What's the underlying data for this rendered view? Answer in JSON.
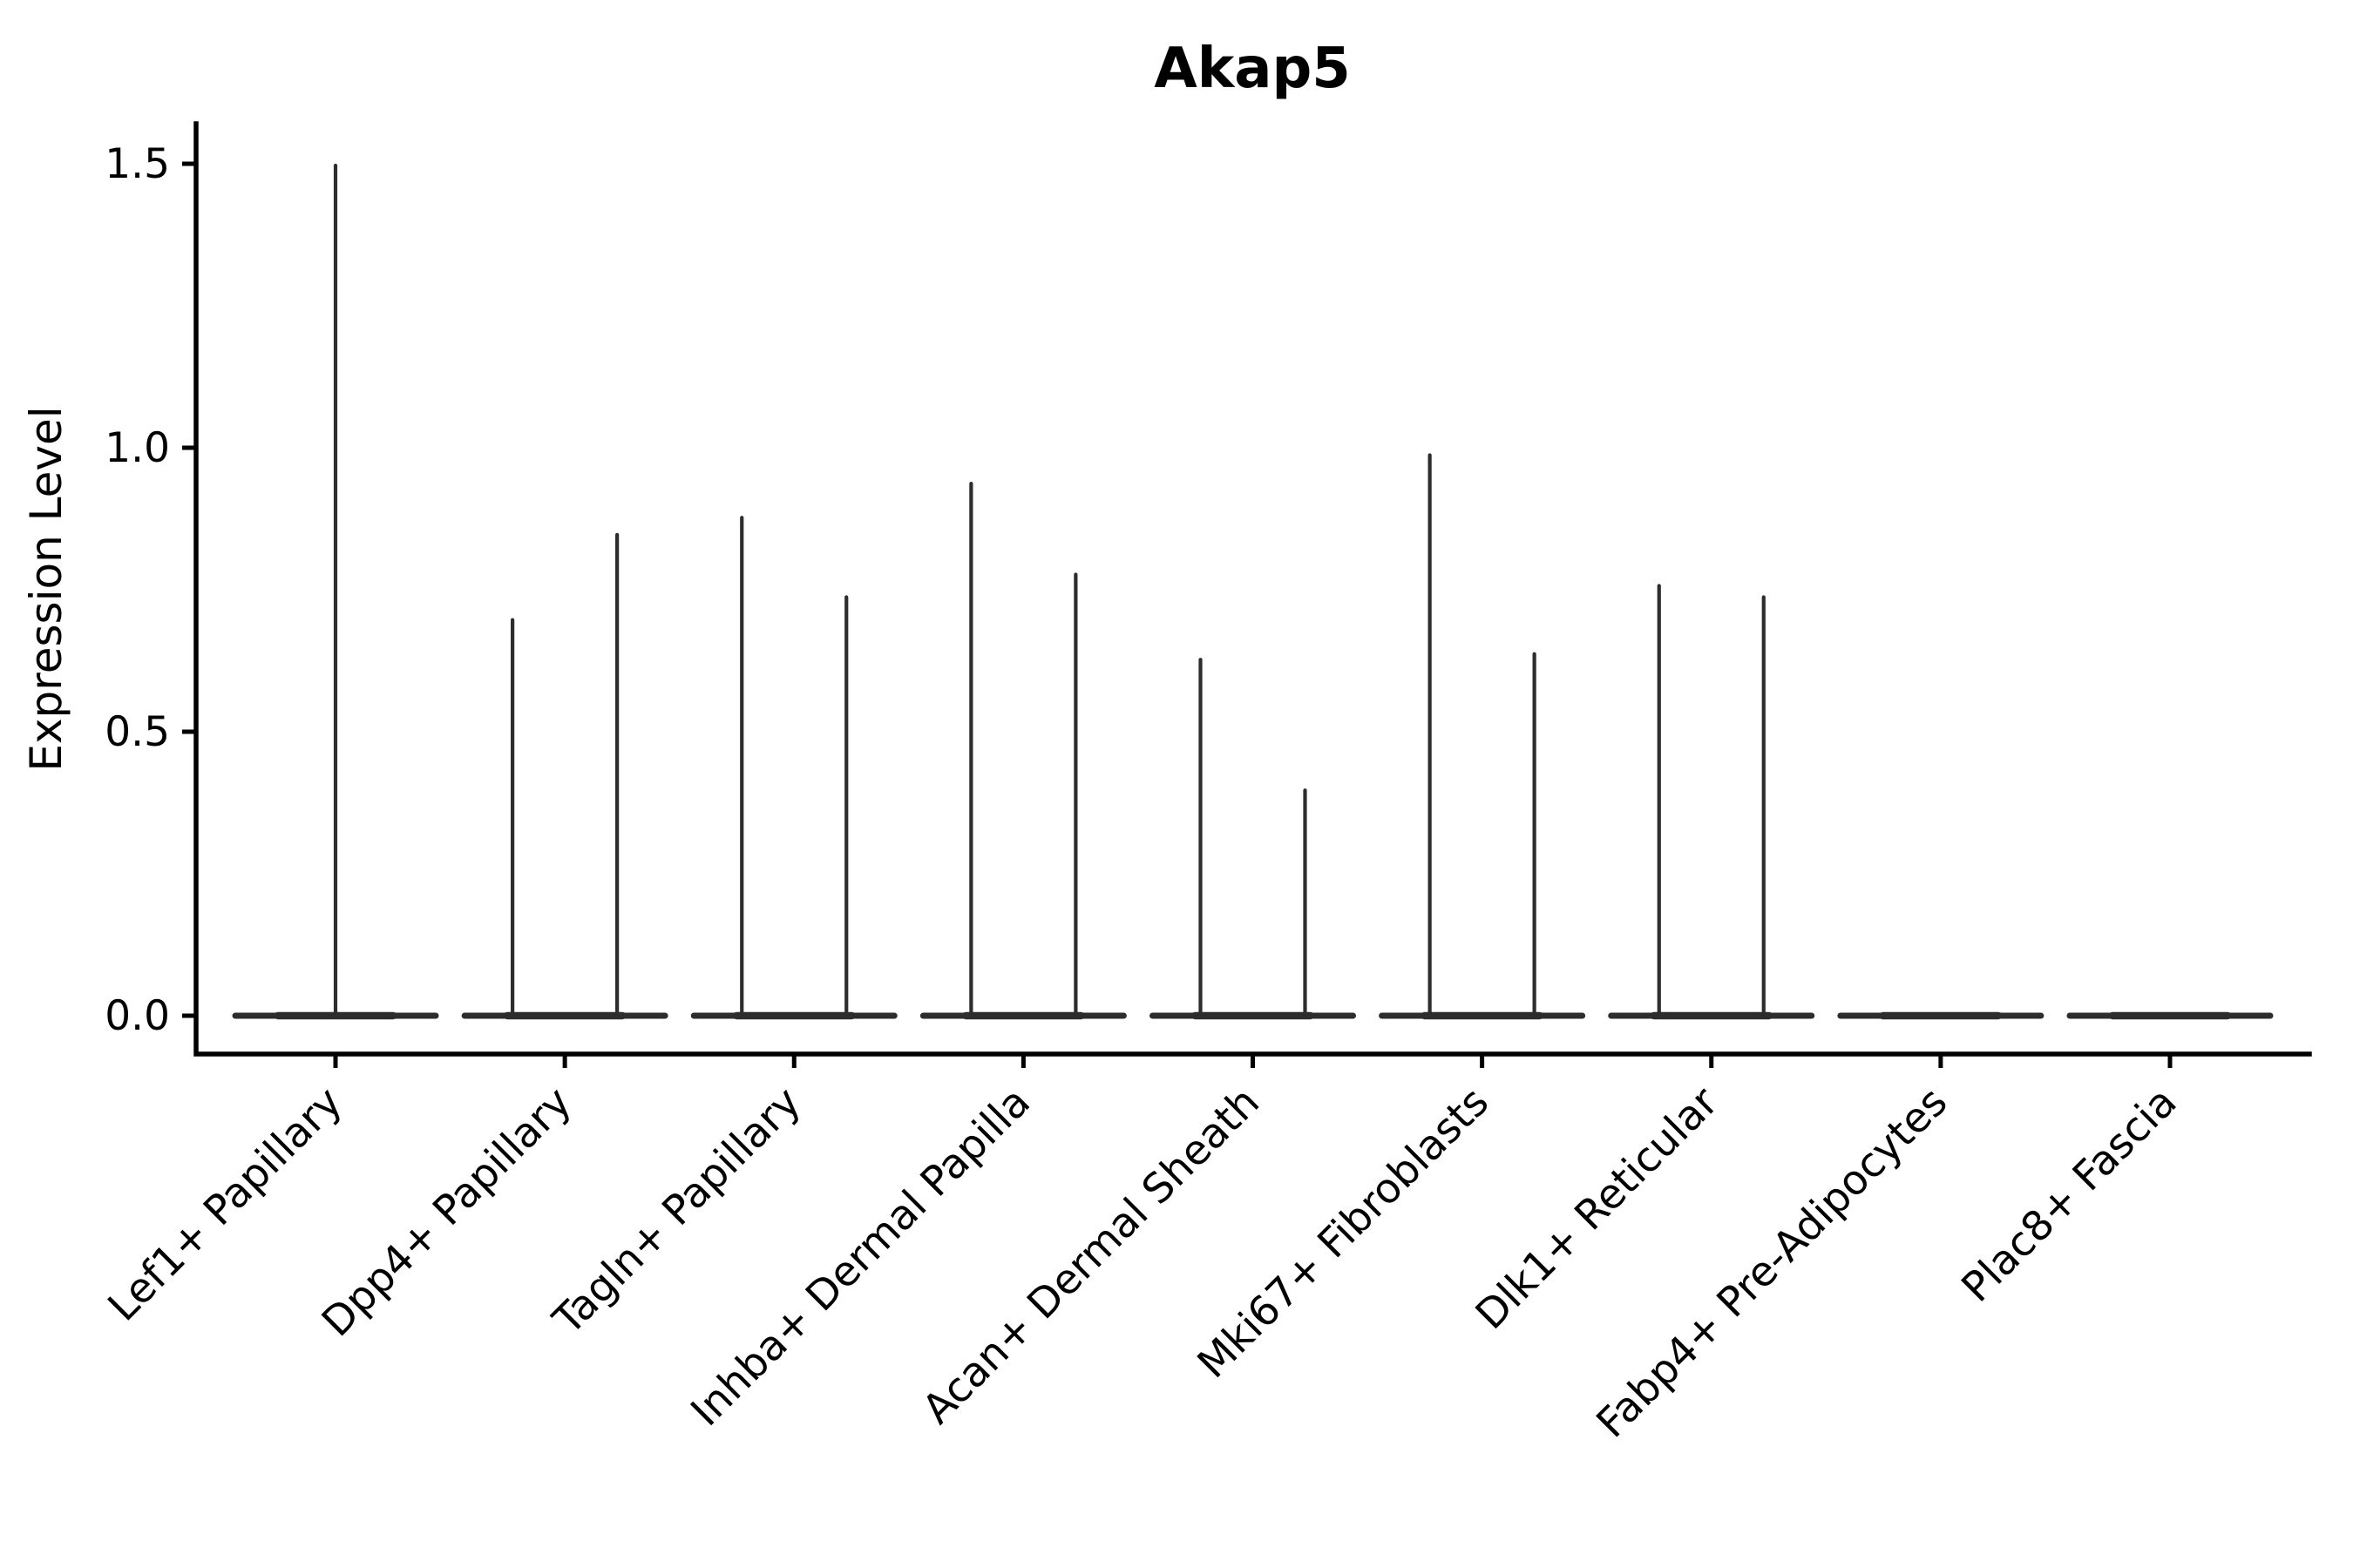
{
  "title": "Akap5",
  "axes": {
    "ylabel": "Expression Level",
    "yticks": [
      {
        "label": "1.5",
        "value": 1.5
      },
      {
        "label": "1.0",
        "value": 1.0
      },
      {
        "label": "0.5",
        "value": 0.5
      },
      {
        "label": "0.0",
        "value": 0.0
      }
    ]
  },
  "chart_data": {
    "type": "violin",
    "title": "Akap5",
    "ylabel": "Expression Level",
    "ylim": [
      -0.07,
      1.57
    ],
    "grid": false,
    "legend": "none",
    "categories": [
      "Lef1+ Papillary",
      "Dpp4+ Papillary",
      "Tagln+ Papillary",
      "Inhba+ Dermal Papilla",
      "Acan+ Dermal Sheath",
      "Mki67+ Fibroblasts",
      "Dlk1+ Reticular",
      "Fabp4+ Pre-Adipocytes",
      "Plac8+ Fascia"
    ],
    "violins": [
      {
        "category": "Lef1+ Papillary",
        "spikes": [
          {
            "position": "center",
            "max": 1.5
          }
        ]
      },
      {
        "category": "Dpp4+ Papillary",
        "spikes": [
          {
            "position": "left",
            "max": 0.7
          },
          {
            "position": "right",
            "max": 0.85
          }
        ]
      },
      {
        "category": "Tagln+ Papillary",
        "spikes": [
          {
            "position": "left",
            "max": 0.88
          },
          {
            "position": "right",
            "max": 0.74
          }
        ]
      },
      {
        "category": "Inhba+ Dermal Papilla",
        "spikes": [
          {
            "position": "left",
            "max": 0.94
          },
          {
            "position": "right",
            "max": 0.78
          }
        ]
      },
      {
        "category": "Acan+ Dermal Sheath",
        "spikes": [
          {
            "position": "left",
            "max": 0.63
          },
          {
            "position": "right",
            "max": 0.4
          }
        ]
      },
      {
        "category": "Mki67+ Fibroblasts",
        "spikes": [
          {
            "position": "left",
            "max": 0.99
          },
          {
            "position": "right",
            "max": 0.64
          }
        ]
      },
      {
        "category": "Dlk1+ Reticular",
        "spikes": [
          {
            "position": "left",
            "max": 0.76
          },
          {
            "position": "right",
            "max": 0.74
          }
        ]
      },
      {
        "category": "Fabp4+ Pre-Adipocytes",
        "spikes": []
      },
      {
        "category": "Plac8+ Fascia",
        "spikes": []
      }
    ]
  },
  "colors": {
    "violin": "#2d2d2d",
    "axis": "#000000",
    "text": "#000000",
    "background": "#ffffff"
  }
}
